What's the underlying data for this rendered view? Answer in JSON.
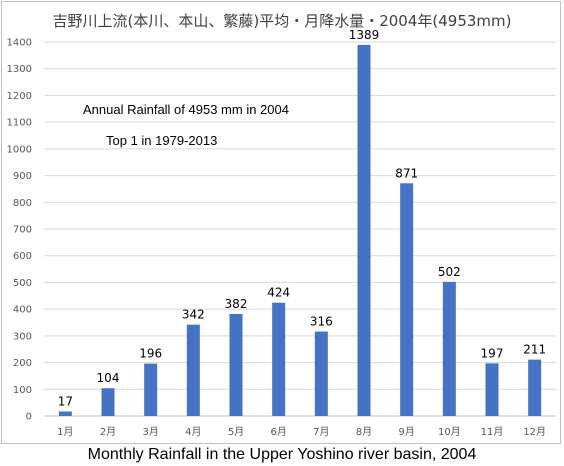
{
  "chart_data": {
    "type": "bar",
    "title": "吉野川上流(本川、本山、繁藤)平均・月降水量・2004年(4953mm)",
    "categories": [
      "1月",
      "2月",
      "3月",
      "4月",
      "5月",
      "6月",
      "7月",
      "8月",
      "9月",
      "10月",
      "11月",
      "12月"
    ],
    "values": [
      17,
      104,
      196,
      342,
      382,
      424,
      316,
      1389,
      871,
      502,
      197,
      211
    ],
    "data_labels": [
      "17",
      "104",
      "196",
      "342",
      "382",
      "424",
      "316",
      "1389",
      "871",
      "502",
      "197",
      "211"
    ],
    "ylim": [
      0,
      1400
    ],
    "yticks": [
      "0",
      "100",
      "200",
      "300",
      "400",
      "500",
      "600",
      "700",
      "800",
      "900",
      "1000",
      "1100",
      "1200",
      "1300",
      "1400"
    ],
    "grid": true,
    "bar_color": "#4472c4",
    "annotations": [
      "Annual Rainfall of 4953 mm in 2004",
      "Top 1 in 1979-2013"
    ],
    "caption": "Monthly Rainfall in the Upper Yoshino river basin, 2004"
  }
}
